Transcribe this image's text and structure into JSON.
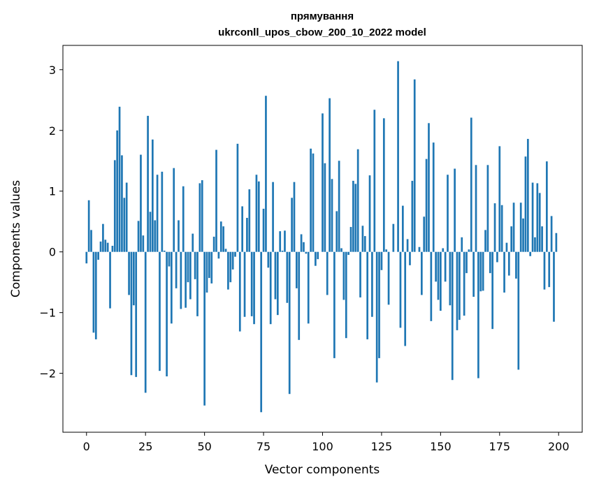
{
  "chart_data": {
    "type": "bar",
    "title": [
      "прямування",
      "ukrconll_upos_cbow_200_10_2022 model"
    ],
    "xlabel": "Vector components",
    "ylabel": "Components values",
    "xlim": [
      -10,
      210
    ],
    "ylim": [
      -2.97,
      3.4
    ],
    "xticks": [
      0,
      25,
      50,
      75,
      100,
      125,
      150,
      175,
      200
    ],
    "yticks": [
      -2,
      -1,
      0,
      1,
      2,
      3
    ],
    "ytick_labels": [
      "−2",
      "−1",
      "0",
      "1",
      "2",
      "3"
    ],
    "bar_color": "#1f77b4",
    "grid": false,
    "legend": "none",
    "values": [
      -0.19,
      0.85,
      0.36,
      -1.33,
      -1.44,
      -0.13,
      0.17,
      0.46,
      0.2,
      0.15,
      -0.93,
      0.1,
      1.51,
      2.0,
      2.39,
      1.59,
      0.89,
      1.14,
      -0.71,
      -2.03,
      -0.88,
      -2.06,
      0.51,
      1.6,
      0.27,
      -2.32,
      2.24,
      0.66,
      1.85,
      0.52,
      1.27,
      -1.96,
      1.32,
      0.02,
      -2.05,
      -0.24,
      -1.18,
      1.38,
      -0.6,
      0.52,
      -0.94,
      1.08,
      -0.92,
      -0.5,
      -0.78,
      0.3,
      -0.45,
      -1.06,
      1.13,
      1.18,
      -2.53,
      -0.67,
      -0.43,
      -0.52,
      0.25,
      1.68,
      -0.11,
      0.5,
      0.42,
      0.05,
      -0.62,
      -0.5,
      -0.29,
      -0.08,
      1.78,
      -1.31,
      0.75,
      -1.07,
      0.56,
      1.03,
      -1.06,
      -1.19,
      1.27,
      1.16,
      -2.64,
      0.71,
      2.57,
      -0.26,
      -1.19,
      1.15,
      -0.78,
      -1.04,
      0.34,
      0.02,
      0.35,
      -0.84,
      -2.34,
      0.89,
      1.15,
      -0.6,
      -1.45,
      0.29,
      0.16,
      -0.03,
      -1.18,
      1.7,
      1.62,
      -0.23,
      -0.12,
      0.0,
      2.28,
      1.46,
      -0.71,
      2.53,
      1.2,
      -1.75,
      0.67,
      1.5,
      0.06,
      -0.79,
      -1.42,
      -0.05,
      0.41,
      1.17,
      1.12,
      1.69,
      -0.75,
      0.43,
      0.26,
      -1.44,
      1.26,
      -1.07,
      2.34,
      -2.15,
      -1.75,
      -0.3,
      2.2,
      0.04,
      -0.87,
      0.0,
      0.46,
      0.0,
      3.14,
      -1.25,
      0.76,
      -1.55,
      0.21,
      -0.22,
      1.17,
      2.84,
      0.0,
      0.08,
      -0.71,
      0.58,
      1.53,
      2.12,
      -1.14,
      1.8,
      -0.49,
      -0.79,
      -0.97,
      0.06,
      -0.49,
      1.27,
      -0.88,
      -2.11,
      1.37,
      -1.29,
      -1.12,
      0.24,
      -1.05,
      -0.35,
      0.04,
      2.21,
      -0.74,
      1.43,
      -2.08,
      -0.65,
      -0.64,
      0.36,
      1.43,
      -0.35,
      -1.27,
      0.8,
      -0.17,
      1.74,
      0.77,
      -0.67,
      0.15,
      -0.39,
      0.42,
      0.81,
      -0.44,
      -1.94,
      0.81,
      0.55,
      1.57,
      1.86,
      -0.07,
      1.14,
      0.24,
      1.13,
      0.97,
      0.42,
      -0.62,
      1.49,
      -0.58,
      0.59,
      -1.15,
      0.31
    ]
  }
}
